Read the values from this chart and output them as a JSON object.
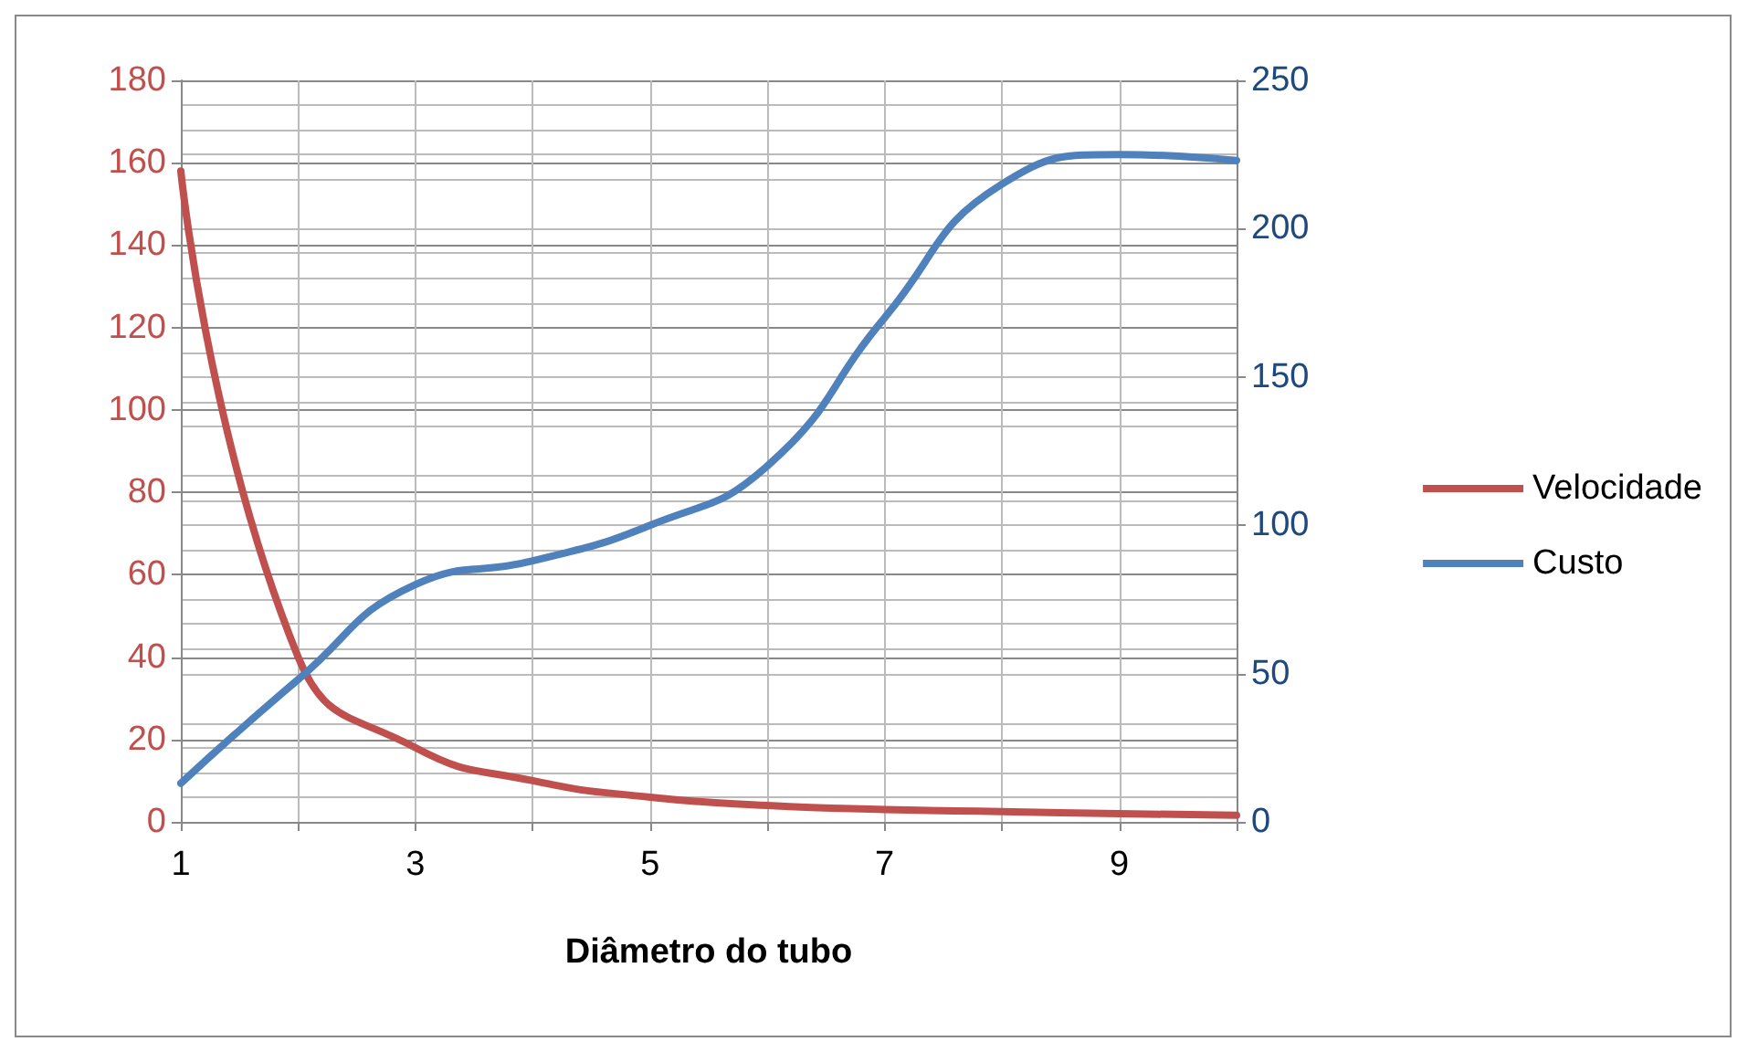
{
  "chart_data": {
    "type": "line",
    "xlabel": "Diâmetro do tubo",
    "x": [
      1,
      2,
      3,
      4,
      5,
      6,
      7,
      8,
      9,
      10
    ],
    "series": [
      {
        "name": "Velocidade",
        "color": "#c0504d",
        "values": [
          158,
          40,
          18,
          10,
          6,
          4,
          3,
          2.5,
          2,
          1.6
        ]
      },
      {
        "name": "Custo",
        "color": "#4f81bd",
        "axis": "y2",
        "values": [
          13,
          48,
          80,
          88,
          100,
          120,
          170,
          215,
          225,
          223
        ]
      }
    ],
    "xlim": [
      1,
      10
    ],
    "xticks": [
      1,
      {
        "value": 2,
        "label": null
      },
      3,
      {
        "value": 4,
        "label": null
      },
      5,
      {
        "value": 6,
        "label": null
      },
      7,
      {
        "value": 8,
        "label": null
      },
      9,
      {
        "value": 10,
        "label": null
      }
    ],
    "ylim": [
      0,
      180
    ],
    "yticks": [
      0,
      20,
      40,
      60,
      80,
      100,
      120,
      140,
      160,
      180
    ],
    "y2lim": [
      0,
      250
    ],
    "y2ticks": [
      0,
      50,
      100,
      150,
      200,
      250
    ],
    "grid": true,
    "legend": "right",
    "marker": "none",
    "line_style": "solid"
  }
}
